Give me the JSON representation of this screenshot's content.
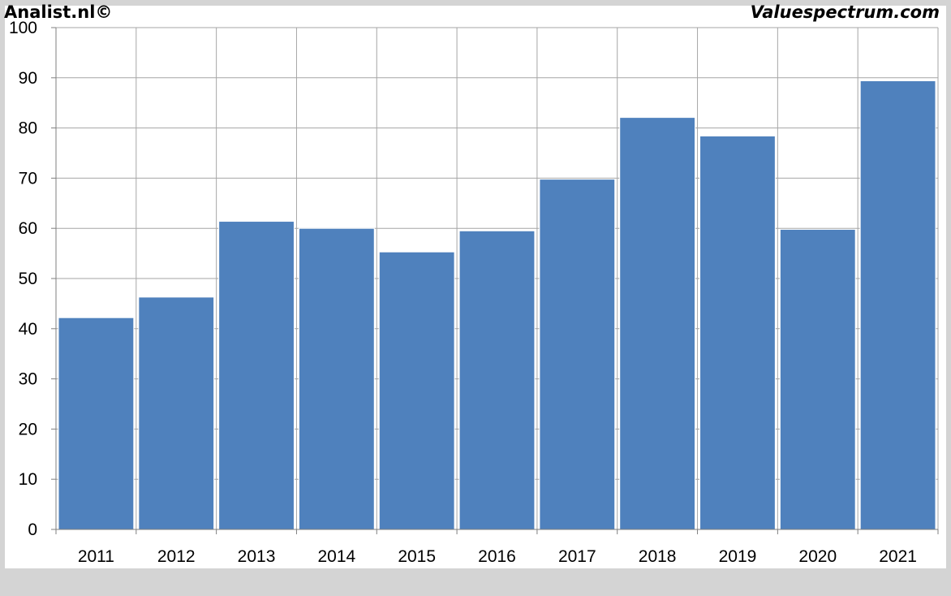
{
  "chart_data": {
    "type": "bar",
    "categories": [
      "2011",
      "2012",
      "2013",
      "2014",
      "2015",
      "2016",
      "2017",
      "2018",
      "2019",
      "2020",
      "2021"
    ],
    "values": [
      42.2,
      46.3,
      61.4,
      60.0,
      55.3,
      59.5,
      69.8,
      82.1,
      78.4,
      59.8,
      89.4
    ],
    "ylim": [
      0,
      100
    ],
    "yticks": [
      0,
      10,
      20,
      30,
      40,
      50,
      60,
      70,
      80,
      90,
      100
    ],
    "grid": true,
    "bar_color": "#4f81bd",
    "title": "",
    "xlabel": "",
    "ylabel": ""
  },
  "footer": {
    "left_text": "Analist.nl©",
    "right_text": "Valuespectrum.com"
  },
  "colors": {
    "frame_background": "#d4d4d4",
    "plot_background": "#ffffff",
    "grid": "#a6a6a6"
  }
}
